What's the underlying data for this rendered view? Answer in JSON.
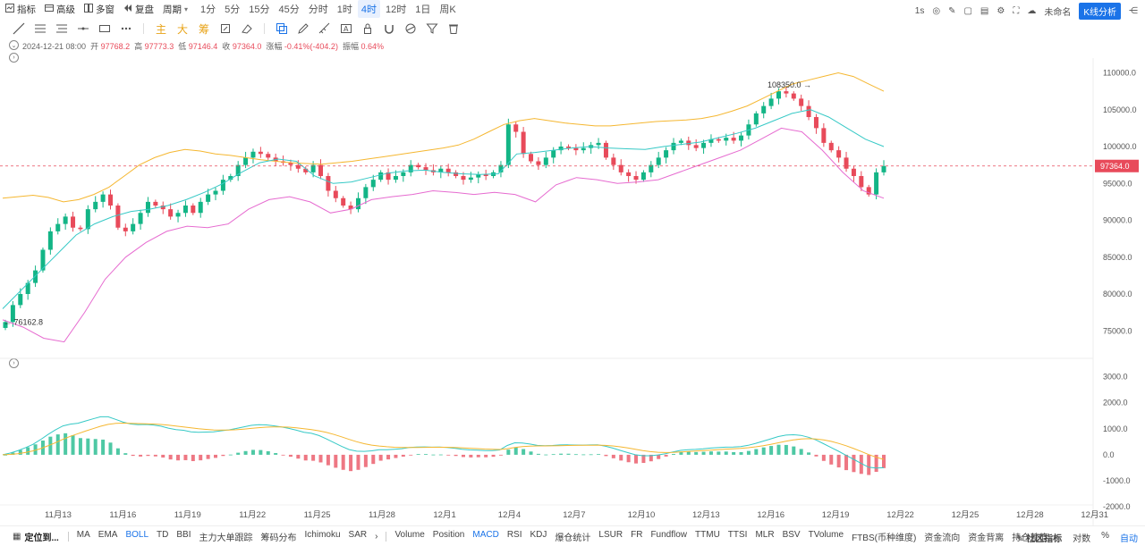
{
  "topbar": {
    "indicator": "指标",
    "advanced": "高级",
    "multiwindow": "多窗",
    "replay": "复盘",
    "period_label": "周期",
    "periods": [
      "1分",
      "5分",
      "15分",
      "45分",
      "分时",
      "1时",
      "4时",
      "12时",
      "1日",
      "周K"
    ],
    "active_period": "4时",
    "interval": "1s",
    "unnamed": "未命名",
    "kline_analysis": "K线分析"
  },
  "drawtools": {
    "main": "主",
    "big": "大",
    "chip": "筹"
  },
  "ohlc": {
    "date": "2024-12-21 08:00",
    "open_label": "开",
    "open": "97768.2",
    "high_label": "高",
    "high": "97773.3",
    "low_label": "低",
    "low": "97146.4",
    "close_label": "收",
    "close": "97364.0",
    "change_label": "涨幅",
    "change": "-0.41%(-404.2)",
    "amp_label": "振幅",
    "amp": "0.64%"
  },
  "price_axis": [
    "110000.0",
    "105000.0",
    "100000.0",
    "95000.0",
    "90000.0",
    "85000.0",
    "80000.0",
    "75000.0"
  ],
  "macd_axis": [
    "3000.0",
    "2000.0",
    "1000.0",
    "0.0",
    "-1000.0",
    "-2000.0"
  ],
  "current_price": "97364.0",
  "max_label": "108350.0",
  "min_label": "76162.8",
  "x_labels": [
    "11月13",
    "11月16",
    "11月19",
    "11月22",
    "11月25",
    "11月28",
    "12月1",
    "12月4",
    "12月7",
    "12月10",
    "12月13",
    "12月16",
    "12月19",
    "12月22",
    "12月25",
    "12月28",
    "12月31"
  ],
  "bottombar": {
    "locate": "定位到...",
    "main_indicators": [
      "MA",
      "EMA",
      "BOLL",
      "TD",
      "BBI",
      "主力大单跟踪",
      "筹码分布",
      "Ichimoku",
      "SAR"
    ],
    "active_main": "BOLL",
    "sub_indicators": [
      "Volume",
      "Position",
      "MACD",
      "RSI",
      "KDJ",
      "爆仓统计",
      "LSUR",
      "FR",
      "Fundflow",
      "TTMU",
      "TTSI",
      "MLR",
      "BSV",
      "TVolume",
      "FTBS(币种维度)",
      "资金流向",
      "资金背离",
      "持仓差值"
    ],
    "active_sub": "MACD",
    "community": "社区指标",
    "log": "对数",
    "percent": "%",
    "auto": "自动"
  },
  "chart_data": {
    "type": "candlestick",
    "symbol_interval": "4h",
    "price_range": [
      72000,
      112000
    ],
    "macd_range": [
      -2100,
      3400
    ],
    "closes": [
      76200,
      78500,
      80000,
      81500,
      83200,
      86000,
      88500,
      89500,
      90500,
      89000,
      88800,
      91500,
      92500,
      93500,
      92000,
      89000,
      88500,
      89500,
      91000,
      92500,
      92000,
      91500,
      90500,
      91000,
      92000,
      91000,
      92500,
      93500,
      94000,
      95500,
      96000,
      97500,
      98500,
      99300,
      99000,
      98500,
      98000,
      97800,
      97500,
      97000,
      96500,
      97500,
      96000,
      94000,
      93000,
      92000,
      91500,
      93000,
      94500,
      95500,
      96500,
      95500,
      96000,
      96500,
      97500,
      97200,
      96800,
      96500,
      97000,
      96500,
      96000,
      95500,
      95800,
      96200,
      96000,
      96500,
      97500,
      103000,
      102000,
      99000,
      98000,
      97500,
      98500,
      99500,
      100000,
      99800,
      99500,
      99800,
      100200,
      100500,
      98500,
      97500,
      96500,
      96000,
      95500,
      96500,
      97500,
      98500,
      99500,
      100500,
      100800,
      100200,
      99800,
      100500,
      101000,
      100800,
      101200,
      100800,
      101500,
      103000,
      104500,
      105500,
      106500,
      107500,
      107200,
      106500,
      105500,
      104000,
      102500,
      100500,
      99500,
      98500,
      97000,
      96000,
      94500,
      93500,
      96500,
      97364
    ],
    "boll_upper": [
      93000,
      93200,
      93400,
      93100,
      92500,
      92800,
      93500,
      94500,
      96000,
      97500,
      98500,
      99200,
      99600,
      99400,
      99000,
      98800,
      98500,
      98200,
      98000,
      97800,
      97700,
      97600,
      97800,
      98000,
      98300,
      98600,
      98900,
      99200,
      99500,
      99800,
      100200,
      101000,
      102000,
      103000,
      103500,
      103800,
      103500,
      103200,
      103000,
      102800,
      102800,
      103000,
      103200,
      103400,
      103500,
      103600,
      103800,
      104200,
      104800,
      105500,
      106500,
      107500,
      108500,
      109000,
      109500,
      110000,
      109500,
      108500,
      107500
    ],
    "boll_mid": [
      78000,
      80500,
      83000,
      85500,
      88000,
      89500,
      90500,
      91200,
      91500,
      92000,
      92800,
      93800,
      95000,
      96500,
      97800,
      98300,
      98000,
      96000,
      95000,
      95200,
      95800,
      96400,
      96700,
      96800,
      96500,
      96300,
      96200,
      96300,
      99000,
      99200,
      99500,
      99800,
      100000,
      99800,
      99700,
      99600,
      100000,
      100300,
      100600,
      101200,
      101800,
      102500,
      103500,
      104500,
      105000,
      104000,
      102500,
      101000,
      100000
    ],
    "boll_lower": [
      76500,
      75500,
      74000,
      73500,
      77500,
      82000,
      85000,
      87000,
      88500,
      89200,
      89000,
      89500,
      91500,
      92800,
      93200,
      92500,
      91000,
      91500,
      92800,
      93200,
      93500,
      94000,
      93800,
      93500,
      93800,
      93500,
      92500,
      94800,
      95800,
      95500,
      95000,
      95200,
      95500,
      96500,
      97500,
      98500,
      99500,
      101000,
      102500,
      102000,
      99500,
      96500,
      94000,
      93000
    ]
  }
}
